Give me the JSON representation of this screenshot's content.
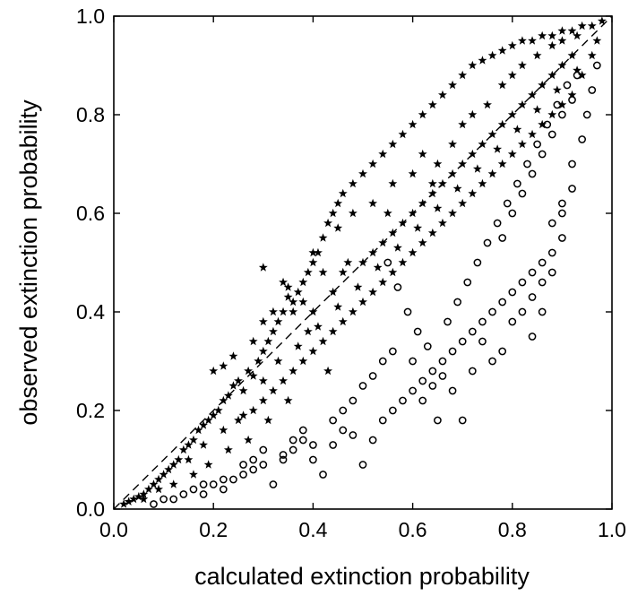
{
  "chart_data": {
    "type": "scatter",
    "xlabel": "calculated extinction probability",
    "ylabel": "observed extinction probability",
    "xlim": [
      0.0,
      1.0
    ],
    "ylim": [
      0.0,
      1.0
    ],
    "xticks": [
      "0.0",
      "0.2",
      "0.4",
      "0.6",
      "0.8",
      "1.0"
    ],
    "yticks": [
      "0.0",
      "0.2",
      "0.4",
      "0.6",
      "0.8",
      "1.0"
    ],
    "grid": false,
    "legend": "none",
    "reference_line": {
      "style": "dashed",
      "points": [
        [
          0,
          0
        ],
        [
          1,
          1
        ]
      ]
    },
    "series": [
      {
        "marker": "star",
        "filled": true,
        "color": "#000000",
        "points": [
          [
            0.02,
            0.01
          ],
          [
            0.03,
            0.015
          ],
          [
            0.04,
            0.02
          ],
          [
            0.05,
            0.025
          ],
          [
            0.06,
            0.03
          ],
          [
            0.07,
            0.04
          ],
          [
            0.08,
            0.05
          ],
          [
            0.09,
            0.06
          ],
          [
            0.1,
            0.07
          ],
          [
            0.11,
            0.08
          ],
          [
            0.12,
            0.09
          ],
          [
            0.13,
            0.1
          ],
          [
            0.14,
            0.12
          ],
          [
            0.15,
            0.13
          ],
          [
            0.16,
            0.14
          ],
          [
            0.17,
            0.16
          ],
          [
            0.18,
            0.17
          ],
          [
            0.19,
            0.18
          ],
          [
            0.2,
            0.19
          ],
          [
            0.21,
            0.2
          ],
          [
            0.22,
            0.22
          ],
          [
            0.23,
            0.23
          ],
          [
            0.24,
            0.25
          ],
          [
            0.25,
            0.26
          ],
          [
            0.26,
            0.24
          ],
          [
            0.27,
            0.28
          ],
          [
            0.28,
            0.27
          ],
          [
            0.29,
            0.3
          ],
          [
            0.3,
            0.32
          ],
          [
            0.31,
            0.34
          ],
          [
            0.32,
            0.36
          ],
          [
            0.33,
            0.38
          ],
          [
            0.34,
            0.4
          ],
          [
            0.35,
            0.45
          ],
          [
            0.36,
            0.42
          ],
          [
            0.37,
            0.44
          ],
          [
            0.38,
            0.46
          ],
          [
            0.39,
            0.48
          ],
          [
            0.4,
            0.5
          ],
          [
            0.41,
            0.52
          ],
          [
            0.42,
            0.55
          ],
          [
            0.43,
            0.58
          ],
          [
            0.44,
            0.6
          ],
          [
            0.45,
            0.62
          ],
          [
            0.46,
            0.64
          ],
          [
            0.48,
            0.66
          ],
          [
            0.5,
            0.68
          ],
          [
            0.52,
            0.7
          ],
          [
            0.54,
            0.72
          ],
          [
            0.56,
            0.74
          ],
          [
            0.58,
            0.76
          ],
          [
            0.6,
            0.78
          ],
          [
            0.62,
            0.8
          ],
          [
            0.64,
            0.82
          ],
          [
            0.66,
            0.84
          ],
          [
            0.68,
            0.86
          ],
          [
            0.7,
            0.88
          ],
          [
            0.72,
            0.9
          ],
          [
            0.74,
            0.91
          ],
          [
            0.76,
            0.92
          ],
          [
            0.78,
            0.93
          ],
          [
            0.8,
            0.94
          ],
          [
            0.82,
            0.95
          ],
          [
            0.84,
            0.95
          ],
          [
            0.86,
            0.96
          ],
          [
            0.88,
            0.96
          ],
          [
            0.9,
            0.97
          ],
          [
            0.92,
            0.97
          ],
          [
            0.94,
            0.98
          ],
          [
            0.96,
            0.98
          ],
          [
            0.98,
            0.99
          ],
          [
            0.3,
            0.49
          ],
          [
            0.34,
            0.46
          ],
          [
            0.35,
            0.43
          ],
          [
            0.36,
            0.4
          ],
          [
            0.4,
            0.52
          ],
          [
            0.42,
            0.48
          ],
          [
            0.45,
            0.57
          ],
          [
            0.48,
            0.6
          ],
          [
            0.52,
            0.62
          ],
          [
            0.56,
            0.66
          ],
          [
            0.6,
            0.68
          ],
          [
            0.62,
            0.72
          ],
          [
            0.65,
            0.7
          ],
          [
            0.68,
            0.74
          ],
          [
            0.7,
            0.78
          ],
          [
            0.72,
            0.8
          ],
          [
            0.75,
            0.82
          ],
          [
            0.78,
            0.86
          ],
          [
            0.8,
            0.88
          ],
          [
            0.82,
            0.9
          ],
          [
            0.85,
            0.92
          ],
          [
            0.88,
            0.94
          ],
          [
            0.9,
            0.95
          ],
          [
            0.93,
            0.96
          ],
          [
            0.2,
            0.28
          ],
          [
            0.22,
            0.29
          ],
          [
            0.24,
            0.31
          ],
          [
            0.28,
            0.34
          ],
          [
            0.3,
            0.38
          ],
          [
            0.32,
            0.4
          ],
          [
            0.38,
            0.42
          ],
          [
            0.4,
            0.4
          ],
          [
            0.44,
            0.44
          ],
          [
            0.46,
            0.48
          ],
          [
            0.5,
            0.5
          ],
          [
            0.52,
            0.52
          ],
          [
            0.54,
            0.54
          ],
          [
            0.56,
            0.56
          ],
          [
            0.58,
            0.58
          ],
          [
            0.6,
            0.6
          ],
          [
            0.62,
            0.62
          ],
          [
            0.64,
            0.64
          ],
          [
            0.66,
            0.66
          ],
          [
            0.68,
            0.68
          ],
          [
            0.7,
            0.7
          ],
          [
            0.72,
            0.72
          ],
          [
            0.74,
            0.74
          ],
          [
            0.76,
            0.76
          ],
          [
            0.78,
            0.78
          ],
          [
            0.8,
            0.8
          ],
          [
            0.82,
            0.82
          ],
          [
            0.84,
            0.84
          ],
          [
            0.86,
            0.86
          ],
          [
            0.88,
            0.88
          ],
          [
            0.9,
            0.9
          ],
          [
            0.92,
            0.92
          ],
          [
            0.15,
            0.1
          ],
          [
            0.18,
            0.13
          ],
          [
            0.22,
            0.16
          ],
          [
            0.25,
            0.18
          ],
          [
            0.28,
            0.2
          ],
          [
            0.3,
            0.22
          ],
          [
            0.32,
            0.24
          ],
          [
            0.34,
            0.26
          ],
          [
            0.36,
            0.28
          ],
          [
            0.38,
            0.3
          ],
          [
            0.4,
            0.32
          ],
          [
            0.42,
            0.34
          ],
          [
            0.44,
            0.36
          ],
          [
            0.46,
            0.38
          ],
          [
            0.48,
            0.4
          ],
          [
            0.5,
            0.42
          ],
          [
            0.52,
            0.44
          ],
          [
            0.54,
            0.46
          ],
          [
            0.56,
            0.48
          ],
          [
            0.58,
            0.5
          ],
          [
            0.6,
            0.52
          ],
          [
            0.62,
            0.54
          ],
          [
            0.64,
            0.56
          ],
          [
            0.66,
            0.58
          ],
          [
            0.68,
            0.6
          ],
          [
            0.7,
            0.62
          ],
          [
            0.72,
            0.64
          ],
          [
            0.74,
            0.66
          ],
          [
            0.76,
            0.68
          ],
          [
            0.78,
            0.7
          ],
          [
            0.8,
            0.72
          ],
          [
            0.82,
            0.74
          ],
          [
            0.84,
            0.76
          ],
          [
            0.86,
            0.78
          ],
          [
            0.88,
            0.8
          ],
          [
            0.9,
            0.82
          ],
          [
            0.92,
            0.84
          ],
          [
            0.94,
            0.88
          ],
          [
            0.96,
            0.92
          ],
          [
            0.97,
            0.95
          ],
          [
            0.26,
            0.19
          ],
          [
            0.3,
            0.26
          ],
          [
            0.33,
            0.3
          ],
          [
            0.37,
            0.33
          ],
          [
            0.41,
            0.37
          ],
          [
            0.45,
            0.41
          ],
          [
            0.49,
            0.45
          ],
          [
            0.53,
            0.49
          ],
          [
            0.57,
            0.53
          ],
          [
            0.61,
            0.57
          ],
          [
            0.65,
            0.61
          ],
          [
            0.69,
            0.65
          ],
          [
            0.73,
            0.69
          ],
          [
            0.77,
            0.73
          ],
          [
            0.81,
            0.77
          ],
          [
            0.85,
            0.81
          ],
          [
            0.89,
            0.85
          ],
          [
            0.93,
            0.89
          ],
          [
            0.64,
            0.66
          ],
          [
            0.55,
            0.6
          ],
          [
            0.47,
            0.5
          ],
          [
            0.39,
            0.36
          ],
          [
            0.43,
            0.28
          ],
          [
            0.35,
            0.22
          ],
          [
            0.31,
            0.18
          ],
          [
            0.27,
            0.14
          ],
          [
            0.23,
            0.12
          ],
          [
            0.19,
            0.09
          ],
          [
            0.16,
            0.07
          ],
          [
            0.12,
            0.05
          ],
          [
            0.09,
            0.04
          ],
          [
            0.06,
            0.02
          ]
        ]
      },
      {
        "marker": "circle",
        "filled": false,
        "color": "#000000",
        "points": [
          [
            0.08,
            0.01
          ],
          [
            0.1,
            0.02
          ],
          [
            0.12,
            0.02
          ],
          [
            0.14,
            0.03
          ],
          [
            0.16,
            0.04
          ],
          [
            0.18,
            0.03
          ],
          [
            0.2,
            0.05
          ],
          [
            0.22,
            0.04
          ],
          [
            0.24,
            0.06
          ],
          [
            0.26,
            0.07
          ],
          [
            0.28,
            0.08
          ],
          [
            0.3,
            0.09
          ],
          [
            0.32,
            0.05
          ],
          [
            0.34,
            0.1
          ],
          [
            0.36,
            0.12
          ],
          [
            0.38,
            0.14
          ],
          [
            0.4,
            0.1
          ],
          [
            0.42,
            0.07
          ],
          [
            0.44,
            0.13
          ],
          [
            0.46,
            0.16
          ],
          [
            0.48,
            0.15
          ],
          [
            0.5,
            0.09
          ],
          [
            0.52,
            0.14
          ],
          [
            0.54,
            0.18
          ],
          [
            0.56,
            0.2
          ],
          [
            0.58,
            0.22
          ],
          [
            0.6,
            0.24
          ],
          [
            0.62,
            0.26
          ],
          [
            0.64,
            0.28
          ],
          [
            0.65,
            0.18
          ],
          [
            0.66,
            0.3
          ],
          [
            0.68,
            0.32
          ],
          [
            0.7,
            0.18
          ],
          [
            0.7,
            0.34
          ],
          [
            0.72,
            0.36
          ],
          [
            0.74,
            0.38
          ],
          [
            0.76,
            0.3
          ],
          [
            0.76,
            0.4
          ],
          [
            0.78,
            0.32
          ],
          [
            0.78,
            0.42
          ],
          [
            0.8,
            0.44
          ],
          [
            0.82,
            0.46
          ],
          [
            0.84,
            0.35
          ],
          [
            0.84,
            0.48
          ],
          [
            0.86,
            0.5
          ],
          [
            0.86,
            0.4
          ],
          [
            0.88,
            0.52
          ],
          [
            0.88,
            0.48
          ],
          [
            0.9,
            0.55
          ],
          [
            0.9,
            0.62
          ],
          [
            0.92,
            0.65
          ],
          [
            0.92,
            0.7
          ],
          [
            0.94,
            0.75
          ],
          [
            0.95,
            0.8
          ],
          [
            0.96,
            0.85
          ],
          [
            0.97,
            0.9
          ],
          [
            0.55,
            0.5
          ],
          [
            0.57,
            0.45
          ],
          [
            0.59,
            0.4
          ],
          [
            0.61,
            0.36
          ],
          [
            0.63,
            0.33
          ],
          [
            0.67,
            0.38
          ],
          [
            0.69,
            0.42
          ],
          [
            0.71,
            0.46
          ],
          [
            0.73,
            0.5
          ],
          [
            0.75,
            0.54
          ],
          [
            0.77,
            0.58
          ],
          [
            0.79,
            0.62
          ],
          [
            0.81,
            0.66
          ],
          [
            0.83,
            0.7
          ],
          [
            0.85,
            0.74
          ],
          [
            0.87,
            0.78
          ],
          [
            0.89,
            0.82
          ],
          [
            0.91,
            0.86
          ],
          [
            0.93,
            0.88
          ],
          [
            0.6,
            0.3
          ],
          [
            0.62,
            0.22
          ],
          [
            0.64,
            0.25
          ],
          [
            0.66,
            0.27
          ],
          [
            0.68,
            0.24
          ],
          [
            0.72,
            0.28
          ],
          [
            0.74,
            0.34
          ],
          [
            0.8,
            0.38
          ],
          [
            0.82,
            0.4
          ],
          [
            0.84,
            0.43
          ],
          [
            0.86,
            0.46
          ],
          [
            0.88,
            0.58
          ],
          [
            0.9,
            0.6
          ],
          [
            0.78,
            0.55
          ],
          [
            0.8,
            0.6
          ],
          [
            0.82,
            0.64
          ],
          [
            0.84,
            0.68
          ],
          [
            0.86,
            0.72
          ],
          [
            0.88,
            0.76
          ],
          [
            0.9,
            0.8
          ],
          [
            0.92,
            0.83
          ],
          [
            0.48,
            0.22
          ],
          [
            0.5,
            0.25
          ],
          [
            0.52,
            0.27
          ],
          [
            0.54,
            0.3
          ],
          [
            0.56,
            0.32
          ],
          [
            0.44,
            0.18
          ],
          [
            0.46,
            0.2
          ],
          [
            0.4,
            0.13
          ],
          [
            0.38,
            0.16
          ],
          [
            0.36,
            0.14
          ],
          [
            0.34,
            0.11
          ],
          [
            0.3,
            0.12
          ],
          [
            0.28,
            0.1
          ],
          [
            0.26,
            0.09
          ],
          [
            0.22,
            0.06
          ],
          [
            0.18,
            0.05
          ]
        ]
      }
    ]
  }
}
